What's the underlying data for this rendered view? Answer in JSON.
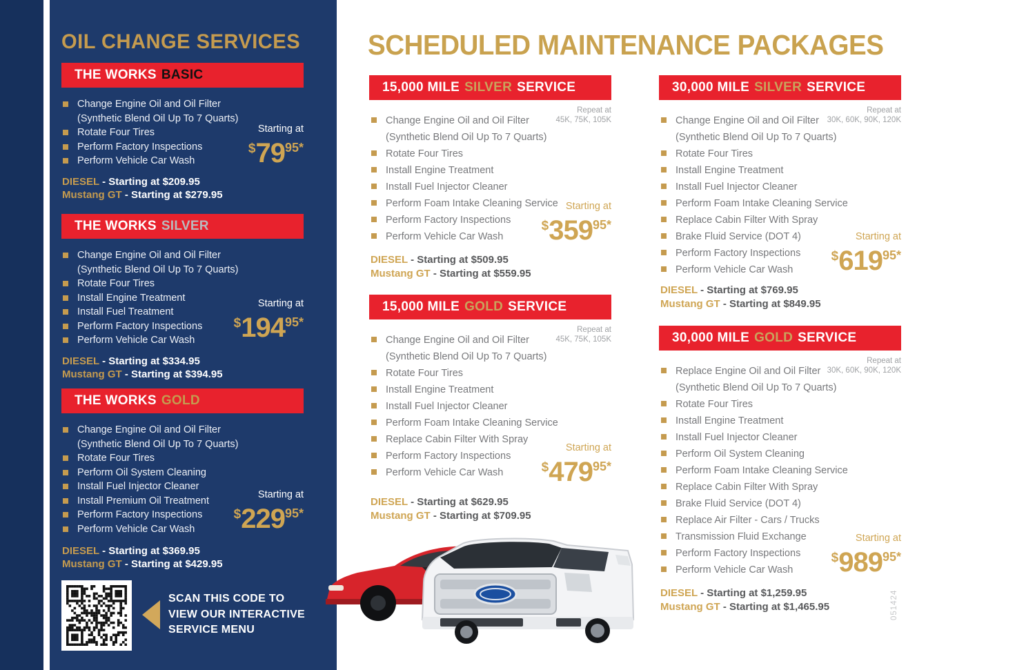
{
  "colors": {
    "navy": "#1E3A6B",
    "navy_dark": "#16305C",
    "red": "#E8222D",
    "gold": "#C59B4F",
    "gold_bright": "#CFA553",
    "silver": "#B9BBBE",
    "black": "#111111",
    "gray_text": "#77787B",
    "dark_gray": "#58595B"
  },
  "left_panel": {
    "title": "OIL CHANGE SERVICES",
    "packages": [
      {
        "title_main": "THE WORKS",
        "title_accent": "BASIC",
        "accent_color": "#111111",
        "items": [
          {
            "text": "Change Engine Oil and Oil Filter",
            "note": "(Synthetic Blend Oil Up To 7 Quarts)"
          },
          {
            "text": "Rotate Four Tires"
          },
          {
            "text": "Perform Factory Inspections"
          },
          {
            "text": "Perform Vehicle Car Wash"
          }
        ],
        "starting_label": "Starting at",
        "price_currency": "$",
        "price_main": "79",
        "price_sup": "95*",
        "diesel_label": "DIESEL",
        "diesel_value": " - Starting at $209.95",
        "mustang_label": "Mustang GT",
        "mustang_value": " - Starting at $279.95"
      },
      {
        "title_main": "THE WORKS",
        "title_accent": "SILVER",
        "accent_color": "#B9BBBE",
        "items": [
          {
            "text": "Change Engine Oil and Oil Filter",
            "note": "(Synthetic Blend Oil Up To 7 Quarts)"
          },
          {
            "text": "Rotate Four Tires"
          },
          {
            "text": "Install Engine Treatment"
          },
          {
            "text": "Install Fuel Treatment"
          },
          {
            "text": "Perform Factory Inspections"
          },
          {
            "text": "Perform Vehicle Car Wash"
          }
        ],
        "starting_label": "Starting at",
        "price_currency": "$",
        "price_main": "194",
        "price_sup": "95*",
        "diesel_label": "DIESEL",
        "diesel_value": " - Starting at $334.95",
        "mustang_label": "Mustang GT",
        "mustang_value": " - Starting at $394.95"
      },
      {
        "title_main": "THE WORKS",
        "title_accent": "GOLD",
        "accent_color": "#C59B4F",
        "items": [
          {
            "text": "Change Engine Oil and Oil Filter",
            "note": "(Synthetic Blend Oil Up To 7 Quarts)"
          },
          {
            "text": "Rotate Four Tires"
          },
          {
            "text": "Perform Oil System Cleaning"
          },
          {
            "text": "Install Fuel Injector Cleaner"
          },
          {
            "text": "Install Premium Oil Treatment"
          },
          {
            "text": "Perform Factory Inspections"
          },
          {
            "text": "Perform Vehicle Car Wash"
          }
        ],
        "starting_label": "Starting at",
        "price_currency": "$",
        "price_main": "229",
        "price_sup": "95*",
        "diesel_label": "DIESEL",
        "diesel_value": " - Starting at $369.95",
        "mustang_label": "Mustang GT",
        "mustang_value": " - Starting at $429.95"
      }
    ],
    "qr": {
      "icon": "qr-code",
      "scan_lines": [
        "SCAN THIS CODE TO",
        "VIEW OUR INTERACTIVE",
        "SERVICE MENU"
      ]
    }
  },
  "main": {
    "title": "SCHEDULED MAINTENANCE PACKAGES",
    "packages": [
      {
        "title_main": "15,000 MILE",
        "title_accent": "SILVER",
        "title_suffix": "SERVICE",
        "accent_color": "#C9A45C",
        "repeat_label": "Repeat at",
        "repeat_values": "45K, 75K, 105K",
        "items": [
          {
            "text": "Change Engine Oil and Oil Filter",
            "note": "(Synthetic Blend Oil Up To 7 Quarts)"
          },
          {
            "text": "Rotate Four Tires"
          },
          {
            "text": "Install Engine Treatment"
          },
          {
            "text": "Install Fuel Injector Cleaner"
          },
          {
            "text": "Perform Foam Intake Cleaning Service"
          },
          {
            "text": "Perform Factory Inspections"
          },
          {
            "text": "Perform Vehicle Car Wash"
          }
        ],
        "starting_label": "Starting at",
        "price_currency": "$",
        "price_main": "359",
        "price_sup": "95*",
        "diesel_label": "DIESEL",
        "diesel_value": " - Starting at $509.95",
        "mustang_label": "Mustang GT",
        "mustang_value": " - Starting at $559.95"
      },
      {
        "title_main": "15,000 MILE",
        "title_accent": "GOLD",
        "title_suffix": "SERVICE",
        "accent_color": "#C9A45C",
        "repeat_label": "Repeat at",
        "repeat_values": "45K, 75K, 105K",
        "items": [
          {
            "text": "Change Engine Oil and Oil Filter",
            "note": "(Synthetic Blend Oil Up To 7 Quarts)"
          },
          {
            "text": "Rotate Four Tires"
          },
          {
            "text": "Install Engine Treatment"
          },
          {
            "text": "Install Fuel Injector Cleaner"
          },
          {
            "text": "Perform Foam Intake Cleaning Service"
          },
          {
            "text": "Replace Cabin Filter With Spray"
          },
          {
            "text": "Perform Factory Inspections"
          },
          {
            "text": "Perform Vehicle Car Wash"
          }
        ],
        "starting_label": "Starting at",
        "price_currency": "$",
        "price_main": "479",
        "price_sup": "95*",
        "diesel_label": "DIESEL",
        "diesel_value": " - Starting at $629.95",
        "mustang_label": "Mustang GT",
        "mustang_value": " - Starting at $709.95"
      },
      {
        "title_main": "30,000 MILE",
        "title_accent": "SILVER",
        "title_suffix": "SERVICE",
        "accent_color": "#C9A45C",
        "repeat_label": "Repeat at",
        "repeat_values": "30K, 60K, 90K, 120K",
        "items": [
          {
            "text": "Change Engine Oil and Oil Filter",
            "note": "(Synthetic Blend Oil Up To 7 Quarts)"
          },
          {
            "text": "Rotate Four Tires"
          },
          {
            "text": "Install Engine Treatment"
          },
          {
            "text": "Install Fuel Injector Cleaner"
          },
          {
            "text": "Perform Foam Intake Cleaning Service"
          },
          {
            "text": "Replace Cabin Filter With Spray"
          },
          {
            "text": "Brake Fluid Service (DOT 4)"
          },
          {
            "text": "Perform Factory Inspections"
          },
          {
            "text": "Perform Vehicle Car Wash"
          }
        ],
        "starting_label": "Starting at",
        "price_currency": "$",
        "price_main": "619",
        "price_sup": "95*",
        "diesel_label": "DIESEL",
        "diesel_value": " - Starting at $769.95",
        "mustang_label": "Mustang GT",
        "mustang_value": " - Starting at $849.95"
      },
      {
        "title_main": "30,000 MILE",
        "title_accent": "GOLD",
        "title_suffix": "SERVICE",
        "accent_color": "#C9A45C",
        "repeat_label": "Repeat at",
        "repeat_values": "30K, 60K, 90K, 120K",
        "items": [
          {
            "text": "Replace Engine Oil and Oil Filter",
            "note": "(Synthetic Blend Oil Up To 7 Quarts)"
          },
          {
            "text": "Rotate Four Tires"
          },
          {
            "text": "Install Engine Treatment"
          },
          {
            "text": "Install Fuel Injector Cleaner"
          },
          {
            "text": "Perform Oil System Cleaning"
          },
          {
            "text": "Perform Foam Intake Cleaning Service"
          },
          {
            "text": "Replace Cabin Filter With Spray"
          },
          {
            "text": "Brake Fluid Service (DOT 4)"
          },
          {
            "text": "Replace Air Filter - Cars / Trucks"
          },
          {
            "text": "Transmission Fluid Exchange"
          },
          {
            "text": "Perform Factory Inspections"
          },
          {
            "text": "Perform Vehicle Car Wash"
          }
        ],
        "starting_label": "Starting at",
        "price_currency": "$",
        "price_main": "989",
        "price_sup": "95*",
        "diesel_label": "DIESEL",
        "diesel_value": " - Starting at $1,259.95",
        "mustang_label": "Mustang GT",
        "mustang_value": " - Starting at $1,465.95"
      }
    ],
    "vehicles_image": "red-mustang-and-white-f150-photo",
    "print_code": "051424"
  }
}
